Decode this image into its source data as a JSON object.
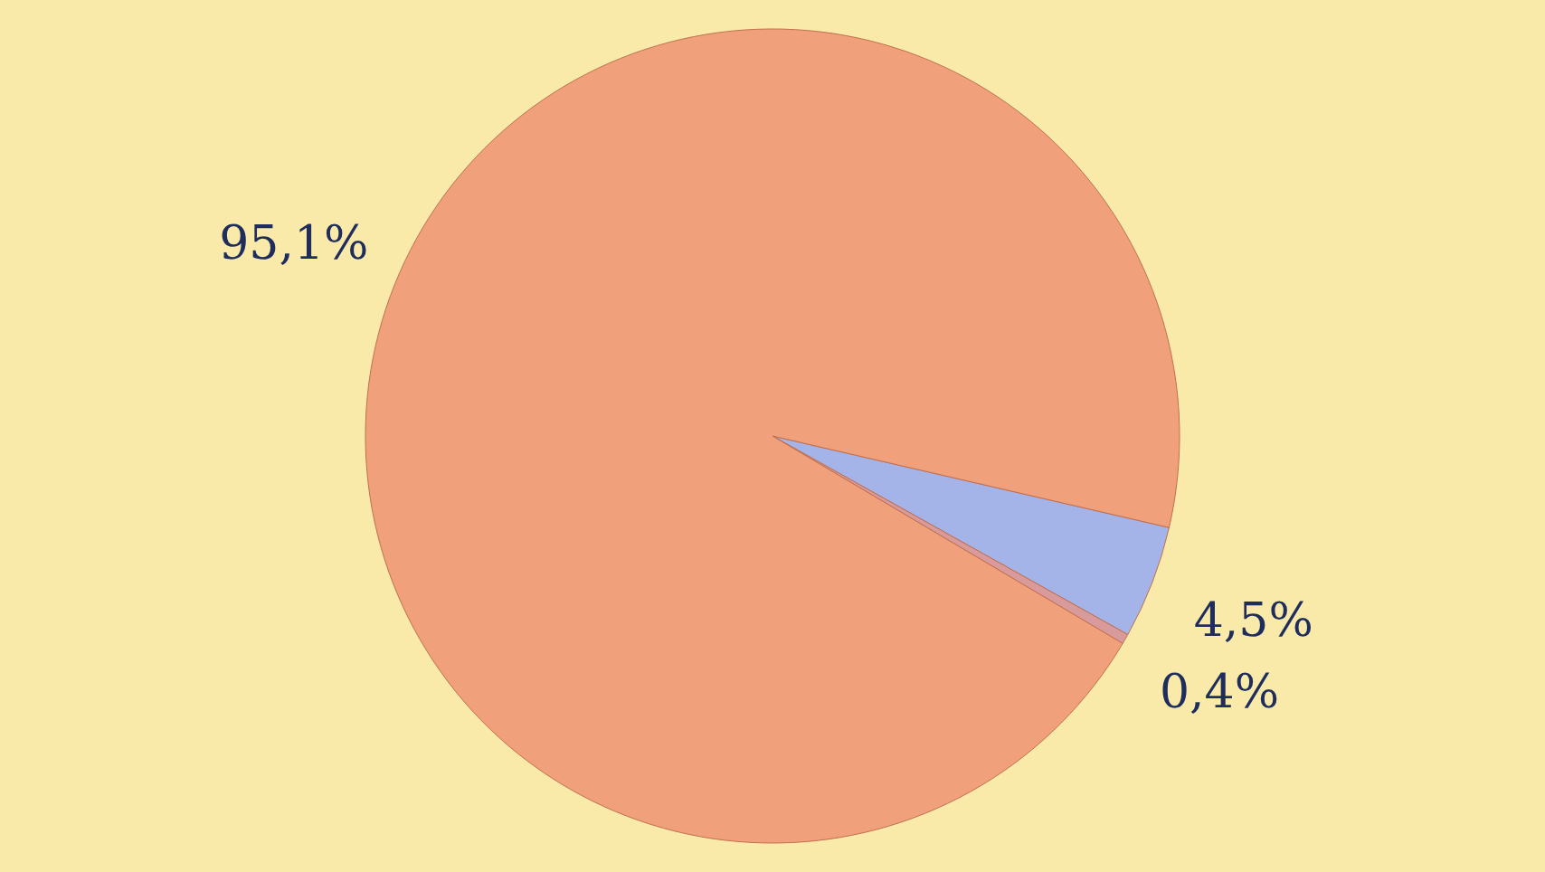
{
  "chart_data": {
    "type": "pie",
    "categories": [
      null,
      null,
      null
    ],
    "values": [
      4.5,
      0.4,
      95.1
    ],
    "colors": [
      "#a4b4e8",
      "#d89a9a",
      "#f0a07a"
    ],
    "value_labels": [
      "4,5%",
      "0,4%",
      "95,1%"
    ]
  }
}
